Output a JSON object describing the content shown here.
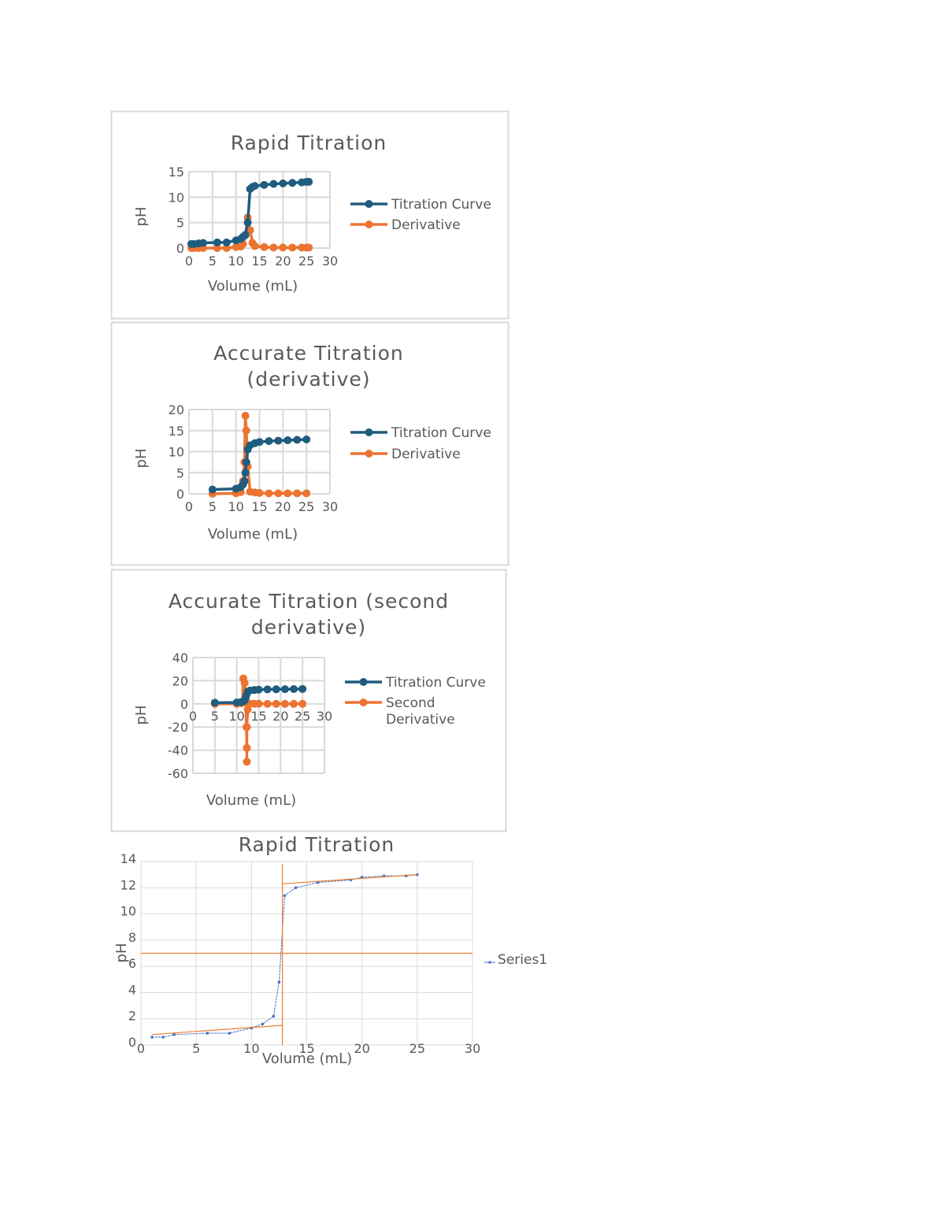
{
  "colors": {
    "titration": "#1f5c7f",
    "derivative": "#ed7330",
    "series1": "#4472c4",
    "tangent": "#ed7d31",
    "grid": "#d9d9d9",
    "border": "#d9d9d9"
  },
  "chart_data": [
    {
      "type": "line",
      "title_lines": [
        "Rapid Titration"
      ],
      "xlabel": "Volume (mL)",
      "ylabel": "pH",
      "xlim": [
        0,
        30
      ],
      "ylim": [
        0,
        15
      ],
      "xticks": [
        "0",
        "5",
        "10",
        "15",
        "20",
        "25",
        "30"
      ],
      "yticks": [
        "0",
        "5",
        "10",
        "15"
      ],
      "grid": true,
      "legend": "right",
      "series": [
        {
          "name": "Titration Curve",
          "color": "#1f5c7f",
          "x": [
            0.5,
            1,
            2,
            3,
            6,
            8,
            10,
            11,
            11.5,
            12,
            12.5,
            13,
            13.5,
            14,
            16,
            18,
            20,
            22,
            24,
            25,
            25.5
          ],
          "y": [
            0.8,
            0.8,
            0.9,
            1,
            1.1,
            1.1,
            1.5,
            1.8,
            2.2,
            2.6,
            5,
            11.6,
            12,
            12.2,
            12.4,
            12.6,
            12.7,
            12.8,
            12.9,
            13,
            13
          ]
        },
        {
          "name": "Derivative",
          "color": "#ed7330",
          "x": [
            0.5,
            1,
            2,
            3,
            6,
            8,
            10,
            11,
            11.5,
            12,
            12.5,
            13,
            13.5,
            14,
            16,
            18,
            20,
            22,
            24,
            25,
            25.5
          ],
          "y": [
            0,
            0,
            0,
            0,
            0,
            0,
            0.2,
            0.3,
            0.8,
            2.5,
            6,
            3.5,
            1,
            0.4,
            0.2,
            0.1,
            0.1,
            0.1,
            0.1,
            0.1,
            0.1
          ]
        }
      ]
    },
    {
      "type": "line",
      "title_lines": [
        "Accurate Titration",
        "(derivative)"
      ],
      "xlabel": "Volume (mL)",
      "ylabel": "pH",
      "xlim": [
        0,
        30
      ],
      "ylim": [
        0,
        20
      ],
      "xticks": [
        "0",
        "5",
        "10",
        "15",
        "20",
        "25",
        "30"
      ],
      "yticks": [
        "0",
        "5",
        "10",
        "15",
        "20"
      ],
      "grid": true,
      "legend": "right",
      "series": [
        {
          "name": "Titration Curve",
          "color": "#1f5c7f",
          "x": [
            5,
            10,
            11,
            11.5,
            11.8,
            12,
            12.2,
            12.5,
            13,
            14,
            15,
            17,
            19,
            21,
            23,
            25
          ],
          "y": [
            1,
            1.2,
            1.6,
            2.2,
            3,
            5,
            7.5,
            10.5,
            11.5,
            12,
            12.3,
            12.5,
            12.6,
            12.7,
            12.8,
            12.9
          ]
        },
        {
          "name": "Derivative",
          "color": "#ed7330",
          "x": [
            5,
            10,
            11,
            11.5,
            11.8,
            12,
            12.2,
            12.5,
            13,
            14,
            15,
            17,
            19,
            21,
            23,
            25
          ],
          "y": [
            0,
            0.1,
            0.4,
            3,
            7.5,
            18.5,
            15,
            6.5,
            0.5,
            0.3,
            0.2,
            0.1,
            0.1,
            0.1,
            0.1,
            0.1
          ]
        }
      ]
    },
    {
      "type": "line",
      "title_lines": [
        "Accurate Titration (second",
        "derivative)"
      ],
      "xlabel": "Volume (mL)",
      "ylabel": "pH",
      "xlim": [
        0,
        30
      ],
      "ylim": [
        -60,
        40
      ],
      "xticks": [
        "0",
        "5",
        "10",
        "15",
        "20",
        "25",
        "30"
      ],
      "yticks": [
        "-60",
        "-40",
        "-20",
        "0",
        "20",
        "40"
      ],
      "grid": true,
      "legend": "right",
      "series": [
        {
          "name": "Titration Curve",
          "color": "#1f5c7f",
          "x": [
            5,
            10,
            11,
            11.5,
            11.8,
            12,
            12.2,
            12.5,
            13,
            14,
            15,
            17,
            19,
            21,
            23,
            25
          ],
          "y": [
            1,
            1.2,
            1.6,
            2.2,
            3,
            5,
            7.5,
            10.5,
            11.5,
            12,
            12.3,
            12.5,
            12.6,
            12.7,
            12.8,
            12.9
          ]
        },
        {
          "name": "Second Derivative",
          "legend_lines": [
            "Second",
            "Derivative"
          ],
          "color": "#ed7330",
          "x": [
            5,
            10,
            11,
            11.3,
            11.5,
            11.8,
            12,
            12.2,
            12.3,
            12.3,
            12.3,
            12.5,
            13,
            14,
            15,
            17,
            19,
            21,
            23,
            25
          ],
          "y": [
            0,
            0,
            0.5,
            2,
            22,
            18,
            10,
            -20,
            -38,
            -50,
            -20,
            -5,
            0.2,
            0.1,
            0.1,
            0,
            0,
            0,
            0,
            0
          ]
        }
      ]
    },
    {
      "type": "line",
      "title_lines": [
        "Rapid Titration"
      ],
      "xlabel": "Volume (mL)",
      "ylabel": "pH",
      "xlim": [
        0,
        30
      ],
      "ylim": [
        0,
        14
      ],
      "xticks": [
        "0",
        "5",
        "10",
        "15",
        "20",
        "25",
        "30"
      ],
      "yticks": [
        "0",
        "2",
        "4",
        "6",
        "8",
        "10",
        "12",
        "14"
      ],
      "grid": true,
      "legend": "right",
      "series": [
        {
          "name": "Series1",
          "color": "#4472c4",
          "x": [
            1,
            2,
            3,
            6,
            8,
            10,
            11,
            12,
            12.5,
            13,
            14,
            16,
            19,
            20,
            22,
            24,
            25
          ],
          "y": [
            0.6,
            0.6,
            0.8,
            0.9,
            0.9,
            1.3,
            1.6,
            2.2,
            4.8,
            11.4,
            12.0,
            12.4,
            12.6,
            12.8,
            12.9,
            12.9,
            13.0
          ]
        }
      ],
      "tangent_lines": [
        {
          "x": [
            1,
            12.8
          ],
          "y": [
            0.8,
            1.5
          ]
        },
        {
          "x": [
            12.8,
            25
          ],
          "y": [
            12.3,
            13.0
          ]
        },
        {
          "x": [
            0,
            30
          ],
          "y": [
            7,
            7
          ]
        },
        {
          "x": [
            12.8,
            12.8
          ],
          "y": [
            0,
            13.8
          ]
        }
      ]
    }
  ]
}
